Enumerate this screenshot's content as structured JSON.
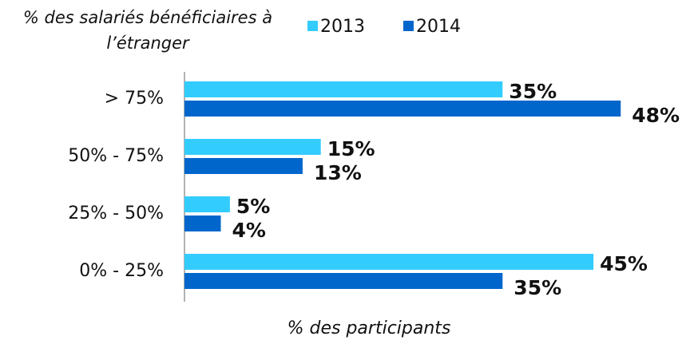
{
  "chart_data": {
    "type": "hbar",
    "ylabel": "% des salariés bénéficiaires à l’étranger",
    "xlabel": "% des participants",
    "categories": [
      "> 75%",
      "50% - 75%",
      "25% - 50%",
      "0% - 25%"
    ],
    "series": [
      {
        "name": "2013",
        "color": "#33ccff",
        "values": [
          35,
          15,
          5,
          45
        ],
        "value_labels": [
          "35%",
          "15%",
          "5%",
          "45%"
        ]
      },
      {
        "name": "2014",
        "color": "#0066cc",
        "values": [
          48,
          13,
          4,
          35
        ],
        "value_labels": [
          "48%",
          "13%",
          "4%",
          "35%"
        ]
      }
    ],
    "xlim": [
      0,
      50
    ]
  }
}
